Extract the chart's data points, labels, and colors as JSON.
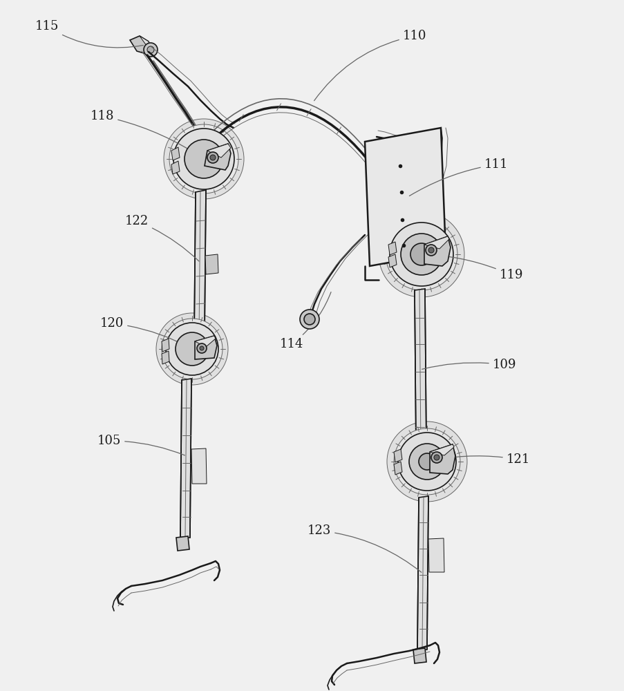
{
  "background_color": "#f0f0f0",
  "line_color": "#4a4a4a",
  "dark_line_color": "#1a1a1a",
  "mid_color": "#666666",
  "fill_light": "#e0e0e0",
  "fill_mid": "#c8c8c8",
  "fill_dark": "#b0b0b0",
  "figsize": [
    9.04,
    10.0
  ],
  "dpi": 100,
  "label_fontsize": 13
}
